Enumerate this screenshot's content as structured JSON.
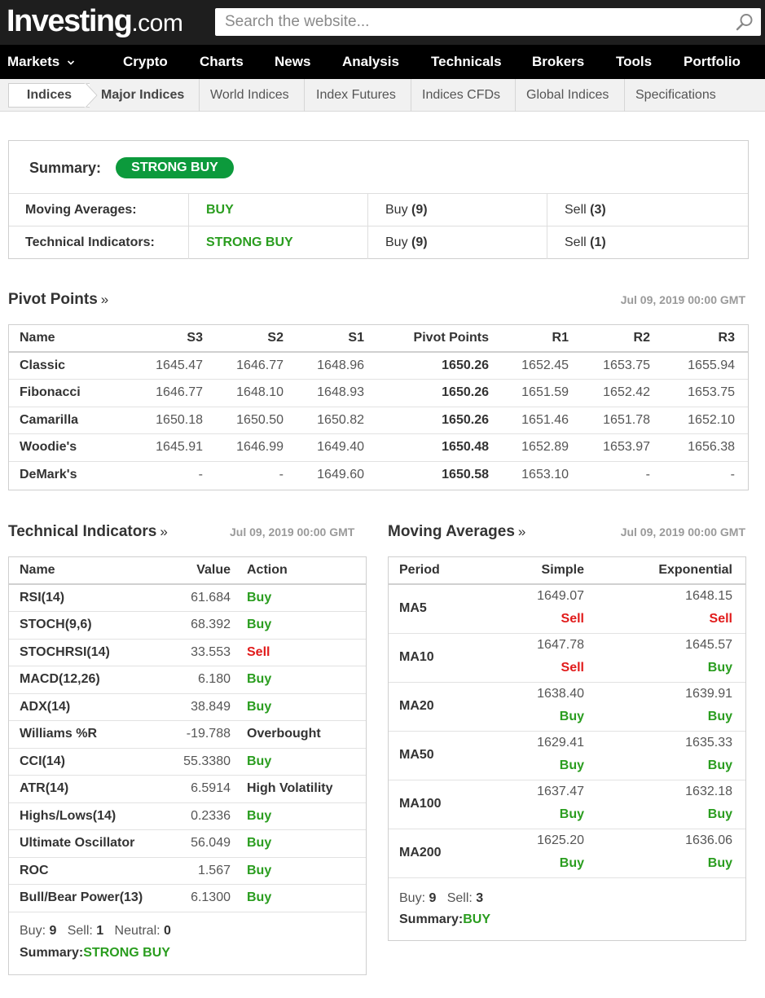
{
  "header": {
    "logo_main": "Investing",
    "logo_suffix": ".com",
    "search_placeholder": "Search the website..."
  },
  "mainnav": {
    "items": [
      {
        "label": "Markets"
      },
      {
        "label": "Crypto"
      },
      {
        "label": "Charts"
      },
      {
        "label": "News"
      },
      {
        "label": "Analysis"
      },
      {
        "label": "Technicals"
      },
      {
        "label": "Brokers"
      },
      {
        "label": "Tools"
      },
      {
        "label": "Portfolio"
      }
    ]
  },
  "subnav": {
    "crumb": "Indices",
    "tabs": [
      "Major Indices",
      "World Indices",
      "Index Futures",
      "Indices CFDs",
      "Global Indices",
      "Specifications"
    ]
  },
  "summary": {
    "label": "Summary:",
    "badge": "STRONG BUY",
    "rows": [
      {
        "name": "Moving Averages:",
        "signal": "BUY",
        "buy_label": "Buy",
        "buy_count": "(9)",
        "sell_label": "Sell",
        "sell_count": "(3)"
      },
      {
        "name": "Technical Indicators:",
        "signal": "STRONG BUY",
        "buy_label": "Buy",
        "buy_count": "(9)",
        "sell_label": "Sell",
        "sell_count": "(1)"
      }
    ]
  },
  "pivot": {
    "title": "Pivot Points",
    "more": "»",
    "date": "Jul 09, 2019 00:00 GMT",
    "headers": [
      "Name",
      "S3",
      "S2",
      "S1",
      "Pivot Points",
      "R1",
      "R2",
      "R3"
    ],
    "rows": [
      [
        "Classic",
        "1645.47",
        "1646.77",
        "1648.96",
        "1650.26",
        "1652.45",
        "1653.75",
        "1655.94"
      ],
      [
        "Fibonacci",
        "1646.77",
        "1648.10",
        "1648.93",
        "1650.26",
        "1651.59",
        "1652.42",
        "1653.75"
      ],
      [
        "Camarilla",
        "1650.18",
        "1650.50",
        "1650.82",
        "1650.26",
        "1651.46",
        "1651.78",
        "1652.10"
      ],
      [
        "Woodie's",
        "1645.91",
        "1646.99",
        "1649.40",
        "1650.48",
        "1652.89",
        "1653.97",
        "1656.38"
      ],
      [
        "DeMark's",
        "-",
        "-",
        "1649.60",
        "1650.58",
        "1653.10",
        "-",
        "-"
      ]
    ]
  },
  "technical": {
    "title": "Technical Indicators",
    "more": "»",
    "date": "Jul 09, 2019 00:00 GMT",
    "headers": [
      "Name",
      "Value",
      "Action"
    ],
    "rows": [
      {
        "name": "RSI(14)",
        "value": "61.684",
        "action": "Buy",
        "kind": "buy"
      },
      {
        "name": "STOCH(9,6)",
        "value": "68.392",
        "action": "Buy",
        "kind": "buy"
      },
      {
        "name": "STOCHRSI(14)",
        "value": "33.553",
        "action": "Sell",
        "kind": "sell"
      },
      {
        "name": "MACD(12,26)",
        "value": "6.180",
        "action": "Buy",
        "kind": "buy"
      },
      {
        "name": "ADX(14)",
        "value": "38.849",
        "action": "Buy",
        "kind": "buy"
      },
      {
        "name": "Williams %R",
        "value": "-19.788",
        "action": "Overbought",
        "kind": "neutral"
      },
      {
        "name": "CCI(14)",
        "value": "55.3380",
        "action": "Buy",
        "kind": "buy"
      },
      {
        "name": "ATR(14)",
        "value": "6.5914",
        "action": "High Volatility",
        "kind": "neutral"
      },
      {
        "name": "Highs/Lows(14)",
        "value": "0.2336",
        "action": "Buy",
        "kind": "buy"
      },
      {
        "name": "Ultimate Oscillator",
        "value": "56.049",
        "action": "Buy",
        "kind": "buy"
      },
      {
        "name": "ROC",
        "value": "1.567",
        "action": "Buy",
        "kind": "buy"
      },
      {
        "name": "Bull/Bear Power(13)",
        "value": "6.1300",
        "action": "Buy",
        "kind": "buy"
      }
    ],
    "footer": {
      "buy_label": "Buy:",
      "buy": "9",
      "sell_label": "Sell:",
      "sell": "1",
      "neutral_label": "Neutral:",
      "neutral": "0",
      "summary_label": "Summary:",
      "summary": "STRONG BUY"
    }
  },
  "moving": {
    "title": "Moving Averages",
    "more": "»",
    "date": "Jul 09, 2019 00:00 GMT",
    "headers": [
      "Period",
      "Simple",
      "Exponential"
    ],
    "rows": [
      {
        "period": "MA5",
        "simple": "1649.07",
        "simple_action": "Sell",
        "simple_kind": "sell",
        "exp": "1648.15",
        "exp_action": "Sell",
        "exp_kind": "sell"
      },
      {
        "period": "MA10",
        "simple": "1647.78",
        "simple_action": "Sell",
        "simple_kind": "sell",
        "exp": "1645.57",
        "exp_action": "Buy",
        "exp_kind": "buy"
      },
      {
        "period": "MA20",
        "simple": "1638.40",
        "simple_action": "Buy",
        "simple_kind": "buy",
        "exp": "1639.91",
        "exp_action": "Buy",
        "exp_kind": "buy"
      },
      {
        "period": "MA50",
        "simple": "1629.41",
        "simple_action": "Buy",
        "simple_kind": "buy",
        "exp": "1635.33",
        "exp_action": "Buy",
        "exp_kind": "buy"
      },
      {
        "period": "MA100",
        "simple": "1637.47",
        "simple_action": "Buy",
        "simple_kind": "buy",
        "exp": "1632.18",
        "exp_action": "Buy",
        "exp_kind": "buy"
      },
      {
        "period": "MA200",
        "simple": "1625.20",
        "simple_action": "Buy",
        "simple_kind": "buy",
        "exp": "1636.06",
        "exp_action": "Buy",
        "exp_kind": "buy"
      }
    ],
    "footer": {
      "buy_label": "Buy:",
      "buy": "9",
      "sell_label": "Sell:",
      "sell": "3",
      "summary_label": "Summary:",
      "summary": "BUY"
    }
  },
  "colors": {
    "buy": "#2a9d1f",
    "sell": "#e11b1b",
    "badge": "#0c9a3c",
    "header_bg": "#1e1e1e"
  },
  "icons": {
    "search": "search-icon",
    "markets_dropdown": "chevron-down-icon",
    "breadcrumb_arrow": "chevron-right-icon"
  }
}
